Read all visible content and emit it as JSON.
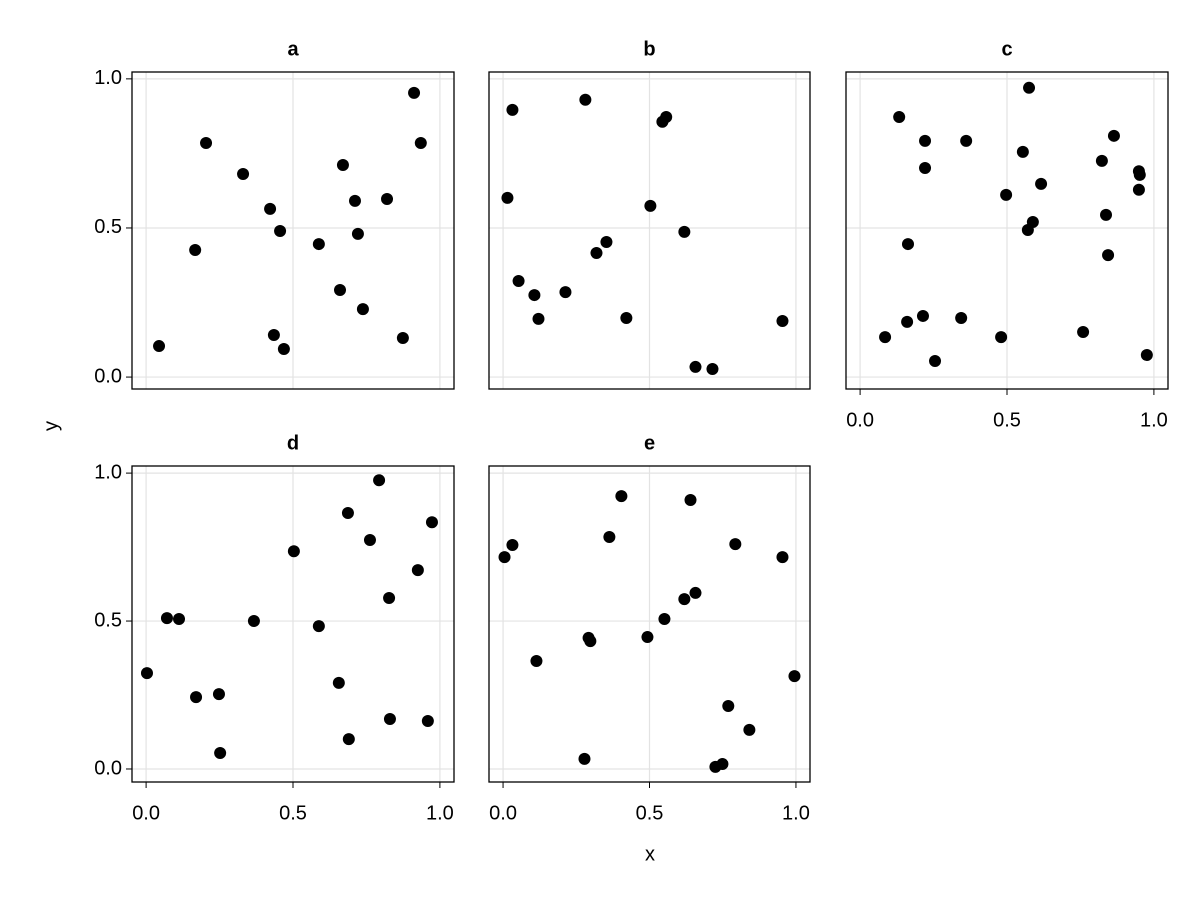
{
  "xlabel": "x",
  "ylabel": "y",
  "chart_data": [
    {
      "type": "scatter",
      "title": "a",
      "color": "#000000",
      "grid": true,
      "xticklabels": false,
      "yticklabels": true,
      "xlim": [
        -0.048,
        1.048
      ],
      "ylim": [
        -0.04,
        1.023
      ],
      "xticks": [
        {
          "value": 0,
          "label": "0.0"
        },
        {
          "value": 0.5,
          "label": "0.5"
        },
        {
          "value": 1,
          "label": "1.0"
        }
      ],
      "yticks": [
        {
          "value": 0,
          "label": "0.0"
        },
        {
          "value": 0.5,
          "label": "0.5"
        },
        {
          "value": 1,
          "label": "1.0"
        }
      ],
      "x": [
        0.044,
        0.167,
        0.204,
        0.33,
        0.422,
        0.435,
        0.456,
        0.469,
        0.588,
        0.66,
        0.67,
        0.711,
        0.721,
        0.738,
        0.82,
        0.874,
        0.912,
        0.935
      ],
      "values": [
        0.104,
        0.426,
        0.785,
        0.681,
        0.564,
        0.141,
        0.49,
        0.094,
        0.446,
        0.292,
        0.711,
        0.591,
        0.48,
        0.228,
        0.597,
        0.131,
        0.953,
        0.785
      ]
    },
    {
      "type": "scatter",
      "title": "b",
      "color": "#000000",
      "grid": true,
      "xticklabels": false,
      "yticklabels": false,
      "xlim": [
        -0.048,
        1.048
      ],
      "ylim": [
        -0.04,
        1.023
      ],
      "xticks": [
        {
          "value": 0,
          "label": "0.0"
        },
        {
          "value": 0.5,
          "label": "0.5"
        },
        {
          "value": 1,
          "label": "1.0"
        }
      ],
      "yticks": [
        {
          "value": 0,
          "label": "0.0"
        },
        {
          "value": 0.5,
          "label": "0.5"
        },
        {
          "value": 1,
          "label": "1.0"
        }
      ],
      "x": [
        0.032,
        0.015,
        0.053,
        0.107,
        0.121,
        0.213,
        0.281,
        0.319,
        0.353,
        0.421,
        0.503,
        0.544,
        0.557,
        0.619,
        0.657,
        0.715,
        0.954
      ],
      "values": [
        0.896,
        0.601,
        0.322,
        0.275,
        0.195,
        0.285,
        0.93,
        0.416,
        0.453,
        0.198,
        0.574,
        0.856,
        0.872,
        0.487,
        0.034,
        0.027,
        0.188
      ]
    },
    {
      "type": "scatter",
      "title": "c",
      "color": "#000000",
      "grid": true,
      "xticklabels": true,
      "yticklabels": false,
      "xlim": [
        -0.048,
        1.048
      ],
      "ylim": [
        -0.04,
        1.023
      ],
      "xticks": [
        {
          "value": 0,
          "label": "0.0"
        },
        {
          "value": 0.5,
          "label": "0.5"
        },
        {
          "value": 1,
          "label": "1.0"
        }
      ],
      "yticks": [
        {
          "value": 0,
          "label": "0.0"
        },
        {
          "value": 0.5,
          "label": "0.5"
        },
        {
          "value": 1,
          "label": "1.0"
        }
      ],
      "x": [
        0.085,
        0.133,
        0.16,
        0.163,
        0.214,
        0.221,
        0.221,
        0.255,
        0.344,
        0.361,
        0.48,
        0.497,
        0.554,
        0.571,
        0.575,
        0.588,
        0.616,
        0.759,
        0.823,
        0.837,
        0.844,
        0.864,
        0.949,
        0.952,
        0.949,
        0.976
      ],
      "values": [
        0.134,
        0.872,
        0.185,
        0.446,
        0.205,
        0.792,
        0.701,
        0.054,
        0.198,
        0.792,
        0.134,
        0.611,
        0.755,
        0.493,
        0.97,
        0.52,
        0.648,
        0.151,
        0.725,
        0.544,
        0.409,
        0.809,
        0.69,
        0.678,
        0.628,
        0.074
      ]
    },
    {
      "type": "scatter",
      "title": "d",
      "color": "#000000",
      "grid": true,
      "xticklabels": true,
      "yticklabels": true,
      "xlim": [
        -0.048,
        1.048
      ],
      "ylim": [
        -0.044,
        1.024
      ],
      "xticks": [
        {
          "value": 0,
          "label": "0.0"
        },
        {
          "value": 0.5,
          "label": "0.5"
        },
        {
          "value": 1,
          "label": "1.0"
        }
      ],
      "yticks": [
        {
          "value": 0,
          "label": "0.0"
        },
        {
          "value": 0.5,
          "label": "0.5"
        },
        {
          "value": 1,
          "label": "1.0"
        }
      ],
      "x": [
        0.003,
        0.071,
        0.112,
        0.17,
        0.248,
        0.252,
        0.367,
        0.503,
        0.588,
        0.656,
        0.687,
        0.69,
        0.762,
        0.793,
        0.827,
        0.83,
        0.925,
        0.959,
        0.973
      ],
      "values": [
        0.324,
        0.51,
        0.507,
        0.243,
        0.253,
        0.054,
        0.5,
        0.736,
        0.483,
        0.291,
        0.865,
        0.101,
        0.774,
        0.976,
        0.578,
        0.169,
        0.672,
        0.162,
        0.834
      ]
    },
    {
      "type": "scatter",
      "title": "e",
      "color": "#000000",
      "grid": true,
      "xticklabels": true,
      "yticklabels": false,
      "xlim": [
        -0.048,
        1.048
      ],
      "ylim": [
        -0.044,
        1.024
      ],
      "xticks": [
        {
          "value": 0,
          "label": "0.0"
        },
        {
          "value": 0.5,
          "label": "0.5"
        },
        {
          "value": 1,
          "label": "1.0"
        }
      ],
      "yticks": [
        {
          "value": 0,
          "label": "0.0"
        },
        {
          "value": 0.5,
          "label": "0.5"
        },
        {
          "value": 1,
          "label": "1.0"
        }
      ],
      "x": [
        0.005,
        0.032,
        0.114,
        0.278,
        0.292,
        0.298,
        0.363,
        0.404,
        0.493,
        0.551,
        0.619,
        0.64,
        0.657,
        0.725,
        0.749,
        0.769,
        0.793,
        0.841,
        0.954,
        0.995
      ],
      "values": [
        0.716,
        0.757,
        0.365,
        0.034,
        0.443,
        0.432,
        0.784,
        0.922,
        0.446,
        0.507,
        0.574,
        0.909,
        0.595,
        0.007,
        0.017,
        0.213,
        0.76,
        0.132,
        0.716,
        0.314
      ]
    }
  ]
}
